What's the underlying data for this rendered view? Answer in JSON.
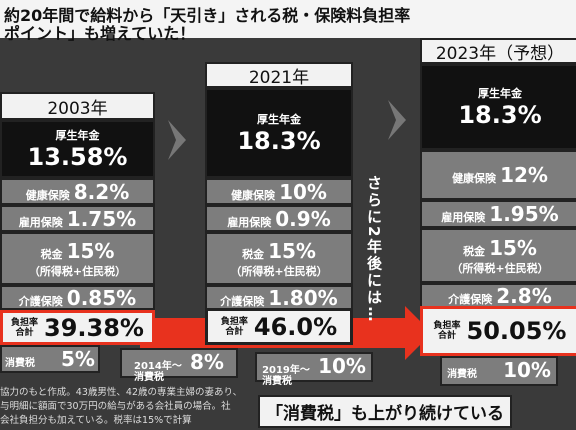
{
  "header": {
    "title_line1": "約20年間で給料から「天引き」される税・保険料負担率",
    "title_line2": "ポイント」も増えていた！"
  },
  "columns": [
    {
      "year": "2003年",
      "blocks": [
        {
          "label": "厚生年金",
          "value": "13.58%"
        },
        {
          "label": "健康保険",
          "value": "8.2%"
        },
        {
          "label": "雇用保険",
          "value": "1.75%"
        },
        {
          "label": "税金",
          "value": "15%",
          "note": "（所得税+住民税）"
        },
        {
          "label": "介護保険",
          "value": "0.85%"
        }
      ],
      "total_label_1": "負担率",
      "total_label_2": "合計",
      "total": "39.38%",
      "consumption": [
        {
          "label": "消費税",
          "value": "5%"
        }
      ]
    },
    {
      "year": "2021年",
      "blocks": [
        {
          "label": "厚生年金",
          "value": "18.3%"
        },
        {
          "label": "健康保険",
          "value": "10%"
        },
        {
          "label": "雇用保険",
          "value": "0.9%"
        },
        {
          "label": "税金",
          "value": "15%",
          "note": "（所得税+住民税）"
        },
        {
          "label": "介護保険",
          "value": "1.80%"
        }
      ],
      "total_label_1": "負担率",
      "total_label_2": "合計",
      "total": "46.0%",
      "consumption": [
        {
          "label": "2014年〜 消費税",
          "value": "8%"
        },
        {
          "label": "2019年〜 消費税",
          "value": "10%"
        }
      ]
    },
    {
      "year": "2023年（予想）",
      "blocks": [
        {
          "label": "厚生年金",
          "value": "18.3%"
        },
        {
          "label": "健康保険",
          "value": "12%"
        },
        {
          "label": "雇用保険",
          "value": "1.95%"
        },
        {
          "label": "税金",
          "value": "15%",
          "note": "（所得税+住民税）"
        },
        {
          "label": "介護保険",
          "value": "2.8%"
        }
      ],
      "total_label_1": "負担率",
      "total_label_2": "合計",
      "total": "50.05%",
      "consumption": [
        {
          "label": "消費税",
          "value": "10%"
        }
      ]
    }
  ],
  "note_vertical": "さらに2年後には…",
  "caption": "「消費税」も上がり続けている",
  "footnote": [
    "協力のもと作成。43歳男性、42歳の専業主婦の妻あり、",
    "与明細に額面で30万円の給与がある会社員の場合。社",
    "会社負担分も加えている。税率は15%で計算"
  ]
}
